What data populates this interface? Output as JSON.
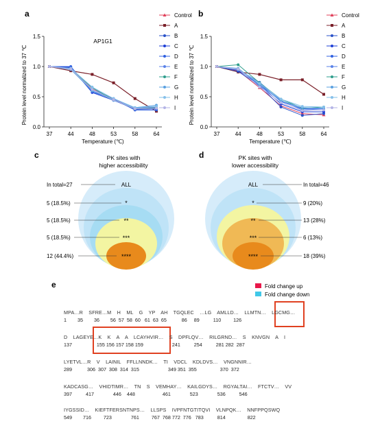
{
  "panels": {
    "a": "a",
    "b": "b",
    "c": "c",
    "d": "d",
    "e": "e"
  },
  "chart_data": [
    {
      "type": "line",
      "panel": "a",
      "title": "AP1G1",
      "xlabel": "Temperature (℃)",
      "ylabel": "Protein level normalized to 37 ℃",
      "categories": [
        "37",
        "44",
        "48",
        "53",
        "58",
        "64"
      ],
      "ylim": [
        0,
        1.5
      ],
      "yticks": [
        "0.0",
        "0.5",
        "1.0",
        "1.5"
      ],
      "series": [
        {
          "name": "Control",
          "values": [
            1.0,
            0.96,
            0.63,
            0.46,
            0.3,
            0.32
          ],
          "color": "#e0405a"
        },
        {
          "name": "A",
          "values": [
            1.0,
            0.93,
            0.87,
            0.73,
            0.47,
            0.26
          ],
          "color": "#7a1f28"
        },
        {
          "name": "B",
          "values": [
            1.0,
            0.98,
            0.6,
            0.45,
            0.29,
            0.3
          ],
          "color": "#2a52c8"
        },
        {
          "name": "C",
          "values": [
            1.0,
            0.99,
            0.57,
            0.44,
            0.3,
            0.31
          ],
          "color": "#1e3fd6"
        },
        {
          "name": "D",
          "values": [
            1.0,
            1.0,
            0.58,
            0.46,
            0.28,
            0.28
          ],
          "color": "#3060e0"
        },
        {
          "name": "E",
          "values": [
            1.0,
            0.97,
            0.62,
            0.47,
            0.31,
            0.33
          ],
          "color": "#5a82e8"
        },
        {
          "name": "F",
          "values": [
            1.0,
            0.96,
            0.65,
            0.45,
            0.3,
            0.32
          ],
          "color": "#2e9e8c"
        },
        {
          "name": "G",
          "values": [
            1.0,
            0.95,
            0.6,
            0.44,
            0.32,
            0.36
          ],
          "color": "#5aa0e0"
        },
        {
          "name": "H",
          "values": [
            1.0,
            0.97,
            0.66,
            0.47,
            0.32,
            0.34
          ],
          "color": "#86c0ea"
        },
        {
          "name": "I",
          "values": [
            1.0,
            0.96,
            0.62,
            0.45,
            0.3,
            0.31
          ],
          "color": "#b4b4e6"
        }
      ]
    },
    {
      "type": "line",
      "panel": "b",
      "title": "",
      "xlabel": "Temperature (℃)",
      "ylabel": "Protein level normalized to 37 ℃",
      "categories": [
        "37",
        "44",
        "48",
        "53",
        "58",
        "64"
      ],
      "ylim": [
        0,
        1.5
      ],
      "yticks": [
        "0.0",
        "0.5",
        "1.0",
        "1.5"
      ],
      "series": [
        {
          "name": "Control",
          "values": [
            1.0,
            0.93,
            0.65,
            0.35,
            0.22,
            0.2
          ],
          "color": "#e0405a"
        },
        {
          "name": "A",
          "values": [
            1.0,
            0.91,
            0.87,
            0.78,
            0.78,
            0.54
          ],
          "color": "#7a1f28"
        },
        {
          "name": "B",
          "values": [
            1.0,
            0.92,
            0.68,
            0.33,
            0.19,
            0.22
          ],
          "color": "#2a52c8"
        },
        {
          "name": "C",
          "values": [
            1.0,
            0.94,
            0.7,
            0.38,
            0.25,
            0.25
          ],
          "color": "#1e3fd6"
        },
        {
          "name": "D",
          "values": [
            1.0,
            0.96,
            0.72,
            0.42,
            0.3,
            0.3
          ],
          "color": "#3060e0"
        },
        {
          "name": "E",
          "values": [
            1.0,
            0.95,
            0.74,
            0.44,
            0.28,
            0.3
          ],
          "color": "#5a82e8"
        },
        {
          "name": "F",
          "values": [
            1.0,
            1.03,
            0.73,
            0.46,
            0.31,
            0.33
          ],
          "color": "#2e9e8c"
        },
        {
          "name": "G",
          "values": [
            1.0,
            0.97,
            0.7,
            0.43,
            0.32,
            0.31
          ],
          "color": "#5aa0e0"
        },
        {
          "name": "H",
          "values": [
            1.0,
            0.95,
            0.72,
            0.46,
            0.34,
            0.33
          ],
          "color": "#86c0ea"
        },
        {
          "name": "I",
          "values": [
            1.0,
            0.96,
            0.66,
            0.4,
            0.27,
            0.28
          ],
          "color": "#b4b4e6"
        }
      ]
    }
  ],
  "venn_c": {
    "title_line1": "PK sites with",
    "title_line2": "higher accessibility",
    "total": "In total=27",
    "levels": [
      "ALL",
      "*",
      "**",
      "***",
      "****"
    ],
    "labels": [
      "5 (18.5%)",
      "5 (18.5%)",
      "5 (18.5%)",
      "12 (44.4%)"
    ]
  },
  "venn_d": {
    "title_line1": "PK sites with",
    "title_line2": "lower accessibility",
    "total": "In total=46",
    "levels": [
      "ALL",
      "*",
      "**",
      "***",
      "****"
    ],
    "labels": [
      "9 (20%)",
      "13 (28%)",
      "6 (13%)",
      "18 (39%)"
    ]
  },
  "colors": {
    "ell1": "#d6ecfa",
    "ell2": "#bfe3f7",
    "ell3": "#a6dcf3",
    "ell_yellow": "#f3f5a2",
    "ell_orange_light": "#f0b955",
    "ell_orange": "#e88a1c",
    "fold_up": "#e8184a",
    "fold_down": "#40c8e8",
    "box": "#e04020"
  },
  "legend_e": {
    "up": "Fold change up",
    "down": "Fold change down"
  },
  "sequence": {
    "rows": [
      "MPA…R    SFRE…M    H    ML    G    YP    AH    TGQLEC    …LG    AMLLD…    LLMTN…    LGCMG…",
      "D    LAGEYE…K    K    A    A    LCAYHVIR…    S    DPFLQV…    RILGRND…    S    KNVGN    A    I",
      "LYETVL…R    V    LAINIL    FFLLNNDK…    TI    VDCL    KDLDVS…    VNGNNIR…",
      "KADCASG…    VHIDTIMR…    TN    S    VEMHAY…    KAILGDYS…    RGYALTAI…    FTCTV…    VV",
      "IYGSSID…    KIEFTFERSNTNPS…    LLSPS    IVPFNTGTITQVI    VLNPQK…    NNFPPQSWQ"
    ],
    "numbers": [
      "1        35        36        56  57  58  60   61  63  65           86     89          110         126",
      "137                  155 156 157 158 159                     241          254          281 282  287",
      "289           306  307  308  314  315                     349 351  355                 370  372",
      "397          417              446    448                    461              523              536          546",
      "549        716         723              761         767  768 772  776   783          814                822"
    ]
  }
}
